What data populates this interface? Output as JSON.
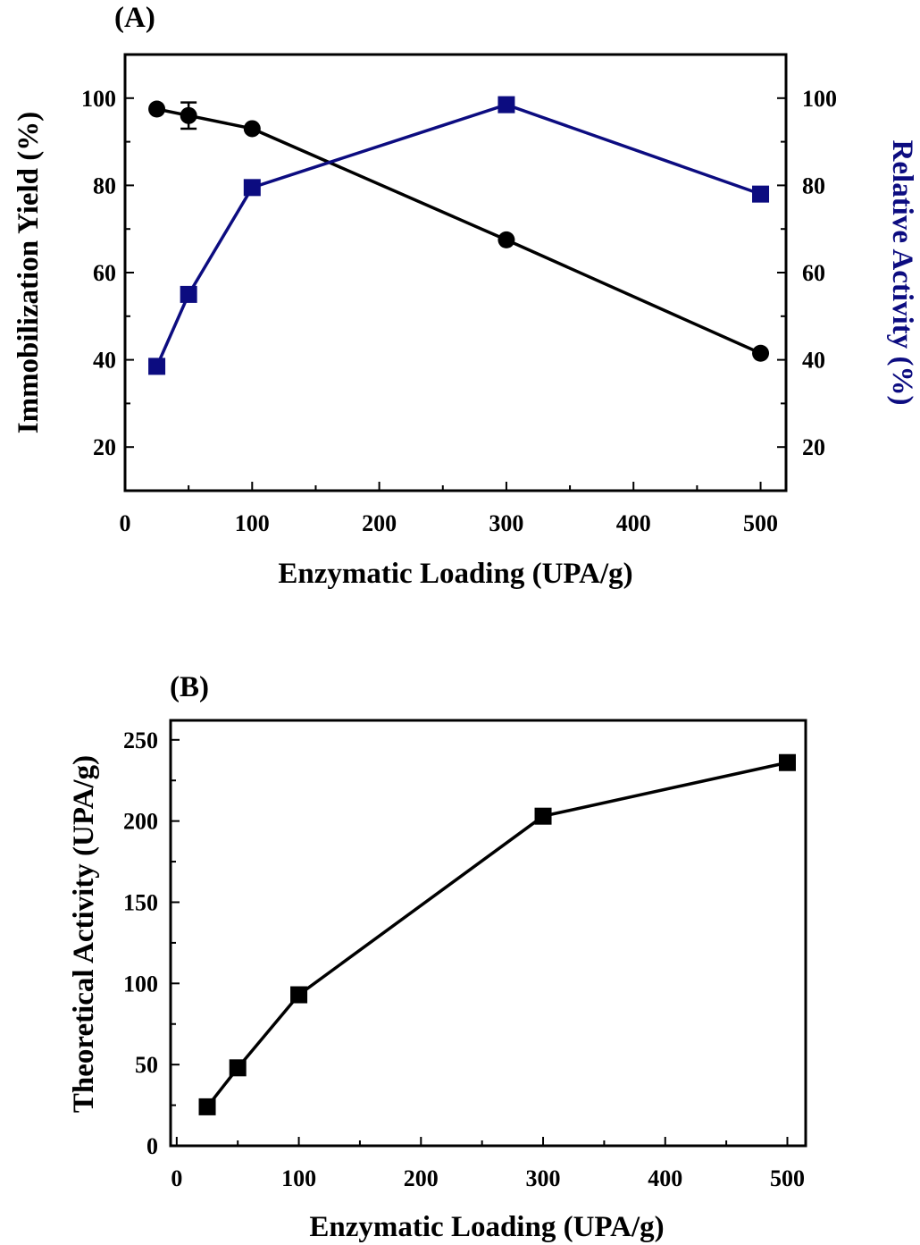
{
  "colors": {
    "black": "#000000",
    "navy": "#0c0c80"
  },
  "chart_data": [
    {
      "panel": "(A)",
      "type": "line",
      "xlabel": "Enzymatic Loading (UPA/g)",
      "xlim": [
        0,
        520
      ],
      "xticks": [
        0,
        100,
        200,
        300,
        400,
        500
      ],
      "ylabel_left": "Immobilization Yield (%)",
      "ylabel_right": "Relative Activity (%)",
      "ylim": [
        10,
        110
      ],
      "yticks": [
        20,
        40,
        60,
        80,
        100
      ],
      "series": [
        {
          "axis": "left",
          "marker": "circle",
          "color": "#000000",
          "x": [
            25,
            50,
            100,
            300,
            500
          ],
          "y": [
            97.5,
            96,
            93,
            67.5,
            41.5
          ],
          "error": [
            0,
            3,
            0,
            0,
            0
          ]
        },
        {
          "axis": "right",
          "marker": "square",
          "color": "#0c0c80",
          "x": [
            25,
            50,
            100,
            300,
            500
          ],
          "y": [
            38.5,
            55,
            79.5,
            98.5,
            78
          ]
        }
      ]
    },
    {
      "panel": "(B)",
      "type": "line",
      "xlabel": "Enzymatic Loading (UPA/g)",
      "xlim": [
        -5,
        515
      ],
      "xticks": [
        0,
        100,
        200,
        300,
        400,
        500
      ],
      "ylabel": "Theoretical Activity (UPA/g)",
      "ylim": [
        0,
        262
      ],
      "yticks": [
        0,
        50,
        100,
        150,
        200,
        250
      ],
      "series": [
        {
          "marker": "square",
          "color": "#000000",
          "x": [
            25,
            50,
            100,
            300,
            500
          ],
          "y": [
            24,
            48,
            93,
            203,
            236
          ]
        }
      ]
    }
  ]
}
